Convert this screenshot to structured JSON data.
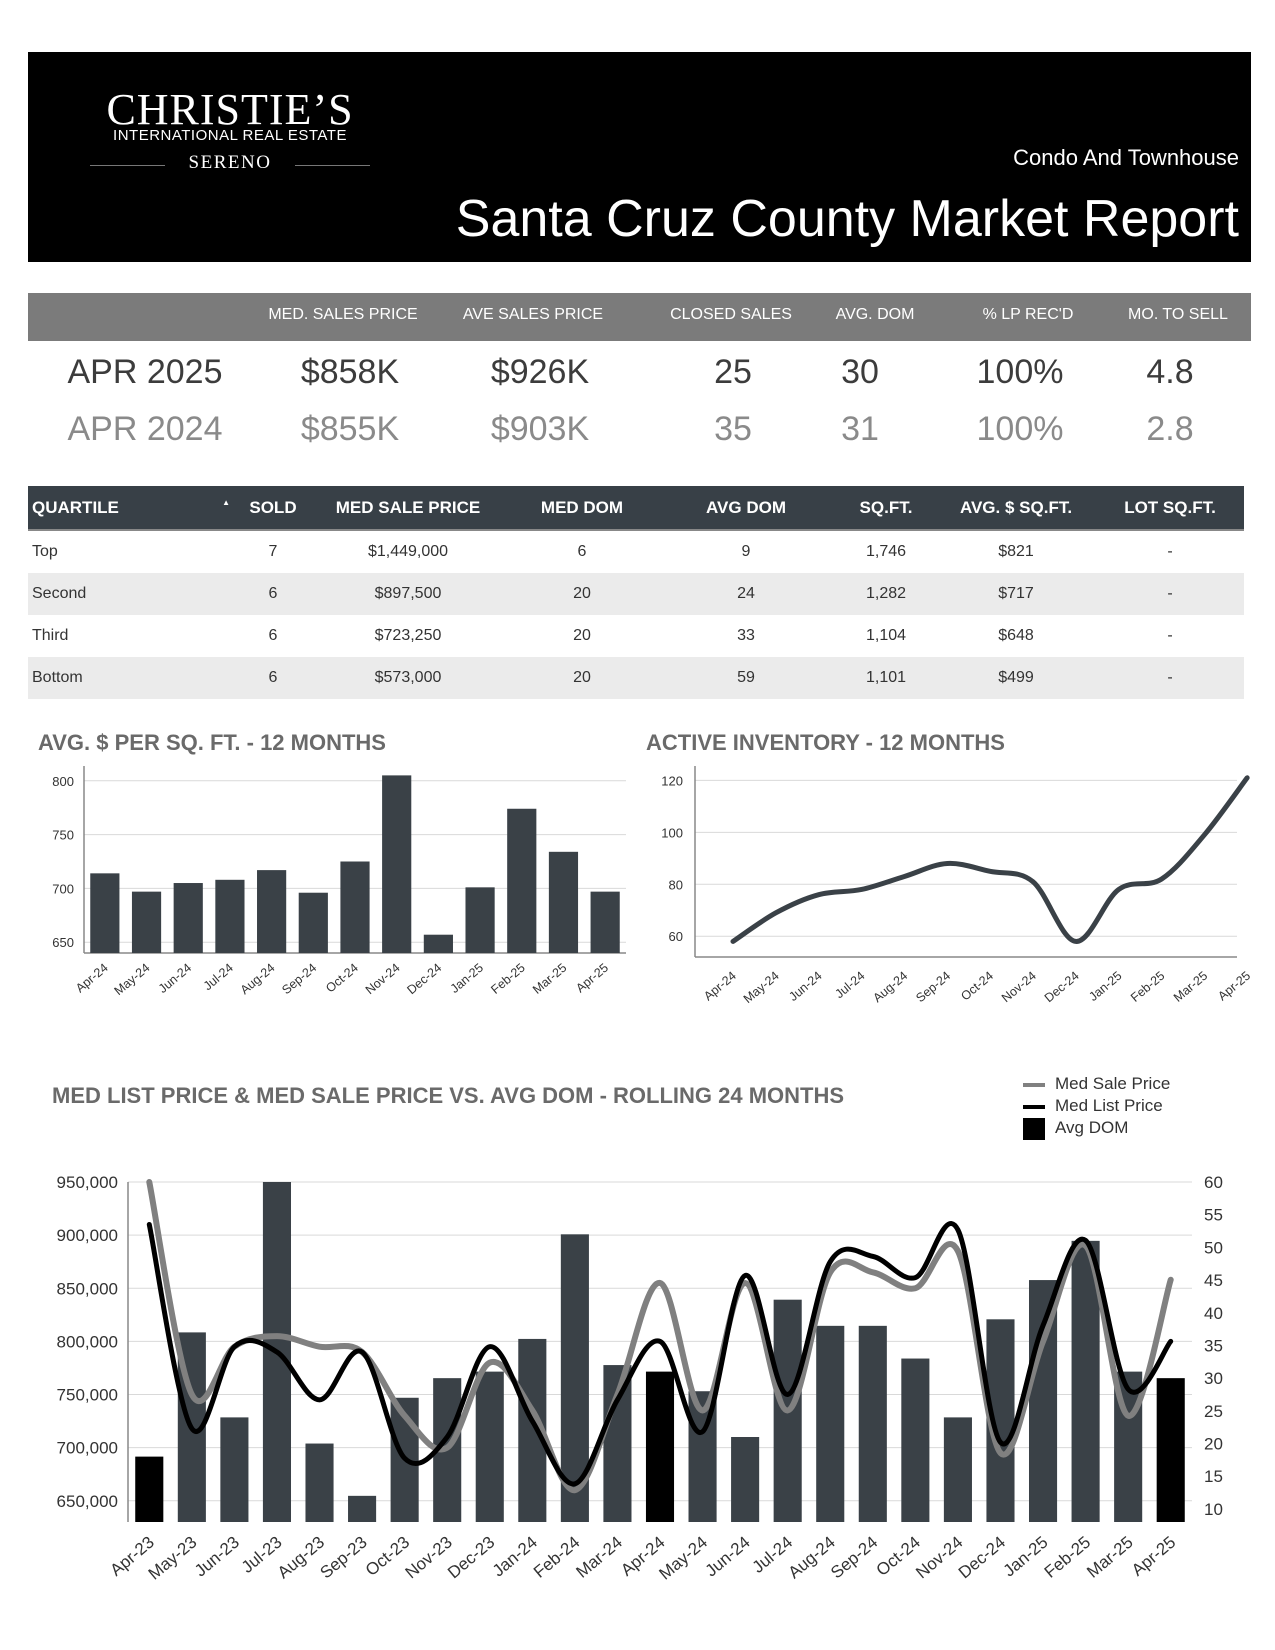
{
  "header": {
    "logo_brand": "CHRISTIE’S",
    "logo_sub": "INTERNATIONAL REAL ESTATE",
    "logo_office": "SERENO",
    "subtitle": "Condo And Townhouse",
    "title": "Santa Cruz County Market Report"
  },
  "summary": {
    "headers": [
      "MED. SALES PRICE",
      "AVE SALES PRICE",
      "CLOSED SALES",
      "AVG. DOM",
      "% LP REC'D",
      "MO. TO SELL"
    ],
    "current": {
      "label": "APR 2025",
      "values": [
        "$858K",
        "$926K",
        "25",
        "30",
        "100%",
        "4.8"
      ]
    },
    "previous": {
      "label": "APR 2024",
      "values": [
        "$855K",
        "$903K",
        "35",
        "31",
        "100%",
        "2.8"
      ]
    }
  },
  "quartiles": {
    "headers": [
      "QUARTILE",
      "SOLD",
      "MED SALE PRICE",
      "MED DOM",
      "AVG DOM",
      "SQ.FT.",
      "AVG. $ SQ.FT.",
      "LOT SQ.FT."
    ],
    "sort_icon": "▲",
    "rows": [
      [
        "Top",
        "7",
        "$1,449,000",
        "6",
        "9",
        "1,746",
        "$821",
        "-"
      ],
      [
        "Second",
        "6",
        "$897,500",
        "20",
        "24",
        "1,282",
        "$717",
        "-"
      ],
      [
        "Third",
        "6",
        "$723,250",
        "20",
        "33",
        "1,104",
        "$648",
        "-"
      ],
      [
        "Bottom",
        "6",
        "$573,000",
        "20",
        "59",
        "1,101",
        "$499",
        "-"
      ]
    ]
  },
  "charts": {
    "ppsf_title": "AVG. $ PER SQ. FT. - 12 MONTHS",
    "inventory_title": "ACTIVE INVENTORY - 12 MONTHS",
    "rolling_title": "MED LIST PRICE & MED SALE PRICE VS. AVG DOM  - ROLLING 24 MONTHS",
    "legend": [
      "Med Sale Price",
      "Med List Price",
      "Avg DOM"
    ]
  },
  "colors": {
    "bar": "#3a4147",
    "bar_highlight": "#000000",
    "sale_line": "#808080",
    "list_line": "#000000",
    "header_bg": "#000000",
    "table_header": "#384047"
  },
  "chart_data": [
    {
      "type": "bar",
      "categories": [
        "Apr-24",
        "May-24",
        "Jun-24",
        "Jul-24",
        "Aug-24",
        "Sep-24",
        "Oct-24",
        "Nov-24",
        "Dec-24",
        "Jan-25",
        "Feb-25",
        "Mar-25",
        "Apr-25"
      ],
      "values": [
        714,
        697,
        705,
        708,
        717,
        696,
        725,
        805,
        657,
        701,
        774,
        734,
        697
      ],
      "ylim": [
        640,
        810
      ],
      "yticks": [
        650,
        700,
        750,
        800
      ],
      "title": "AVG. $ PER SQ. FT. - 12 MONTHS"
    },
    {
      "type": "line",
      "categories": [
        "Apr-24",
        "May-24",
        "Jun-24",
        "Jul-24",
        "Aug-24",
        "Sep-24",
        "Oct-24",
        "Nov-24",
        "Dec-24",
        "Jan-25",
        "Feb-25",
        "Mar-25",
        "Apr-25"
      ],
      "values": [
        58,
        69,
        76,
        78,
        83,
        88,
        85,
        81,
        58,
        78,
        82,
        99,
        121
      ],
      "ylim": [
        52,
        124
      ],
      "yticks": [
        60,
        80,
        100,
        120
      ],
      "grid": true,
      "title": "ACTIVE INVENTORY - 12 MONTHS"
    },
    {
      "type": "bar",
      "title": "MED LIST PRICE & MED SALE PRICE VS. AVG DOM  - ROLLING 24 MONTHS",
      "categories": [
        "Apr-23",
        "May-23",
        "Jun-23",
        "Jul-23",
        "Aug-23",
        "Sep-23",
        "Oct-23",
        "Nov-23",
        "Dec-23",
        "Jan-24",
        "Feb-24",
        "Mar-24",
        "Apr-24",
        "May-24",
        "Jun-24",
        "Jul-24",
        "Aug-24",
        "Sep-24",
        "Oct-24",
        "Nov-24",
        "Dec-24",
        "Jan-25",
        "Feb-25",
        "Mar-25",
        "Apr-25"
      ],
      "series": [
        {
          "name": "Avg DOM",
          "axis": "right",
          "values": [
            18,
            37,
            24,
            60,
            20,
            12,
            27,
            30,
            31,
            36,
            52,
            32,
            31,
            28,
            21,
            42,
            38,
            38,
            33,
            24,
            39,
            45,
            51,
            31,
            30
          ]
        },
        {
          "name": "Med Sale Price",
          "axis": "left",
          "values": [
            950000,
            750000,
            795000,
            805000,
            795000,
            790000,
            730000,
            700000,
            780000,
            735000,
            660000,
            750000,
            855000,
            735000,
            855000,
            735000,
            865000,
            865000,
            850000,
            885000,
            695000,
            800000,
            890000,
            730000,
            858000
          ]
        },
        {
          "name": "Med List Price",
          "axis": "left",
          "values": [
            910000,
            718000,
            795000,
            790000,
            745000,
            790000,
            690000,
            710000,
            795000,
            725000,
            666000,
            745000,
            800000,
            715000,
            862000,
            750000,
            875000,
            880000,
            860000,
            905000,
            705000,
            815000,
            895000,
            755000,
            800000
          ]
        }
      ],
      "ylim_left": [
        630000,
        950000
      ],
      "yticks_left": [
        650000,
        700000,
        750000,
        800000,
        850000,
        900000,
        950000
      ],
      "ytick_labels_left": [
        "650,000",
        "700,000",
        "750,000",
        "800,000",
        "850,000",
        "900,000",
        "950,000"
      ],
      "ylim_right": [
        8,
        60
      ],
      "yticks_right": [
        10,
        15,
        20,
        25,
        30,
        35,
        40,
        45,
        50,
        55,
        60
      ],
      "highlighted_bars": [
        "Apr-23",
        "Apr-24",
        "Apr-25"
      ],
      "legend_position": "top-right"
    }
  ]
}
